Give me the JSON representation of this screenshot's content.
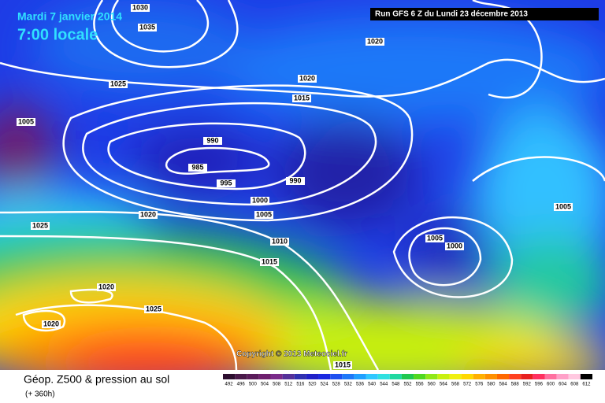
{
  "header": {
    "date": "Mardi 7 janvier 2014",
    "time": "7:00 locale",
    "run": "Run GFS 6 Z du Lundi 23 décembre 2013"
  },
  "isobar_labels": [
    1030,
    1035,
    1025,
    1005,
    990,
    985,
    995,
    990,
    1000,
    1005,
    1020,
    1025,
    1010,
    1015,
    1020,
    1020,
    1025,
    1020,
    1020,
    1015,
    1005,
    1005,
    1000,
    1015
  ],
  "copyright": "Copyright © 2013 Meteociel.fr",
  "legend": {
    "title": "Géop. Z500 & pression au sol",
    "subtitle": "(+ 360h)",
    "labels": [
      492,
      496,
      500,
      504,
      508,
      512,
      516,
      520,
      524,
      528,
      532,
      536,
      540,
      544,
      548,
      552,
      556,
      560,
      564,
      568,
      572,
      576,
      580,
      584,
      588,
      592,
      596,
      600,
      604,
      608,
      612
    ],
    "colors": [
      "#2d0f2f",
      "#4a1a4a",
      "#5a1c5a",
      "#6e1f6e",
      "#7a2a8a",
      "#55309a",
      "#3030b0",
      "#2020c8",
      "#1a28e0",
      "#1e50f0",
      "#1e78f8",
      "#20a0ff",
      "#30c8ff",
      "#30e0e0",
      "#20d8a0",
      "#20c850",
      "#50d820",
      "#90e818",
      "#c8f010",
      "#f0f010",
      "#ffd800",
      "#ffb000",
      "#ff9000",
      "#ff6800",
      "#ff4020",
      "#e82020",
      "#ff3060",
      "#ff70a0",
      "#ffa0c8",
      "#ffc8e0",
      "#000000"
    ]
  }
}
